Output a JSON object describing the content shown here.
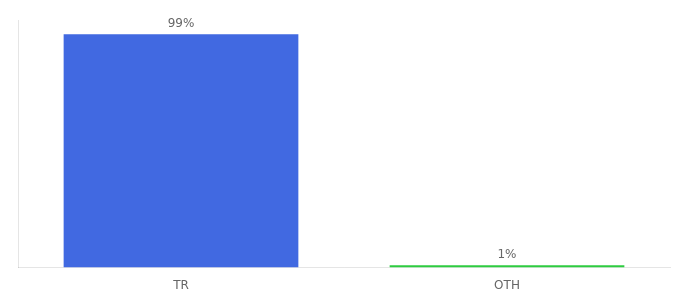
{
  "chart_data": {
    "type": "bar",
    "categories": [
      "TR",
      "OTH"
    ],
    "values": [
      99,
      1
    ],
    "data_labels": true,
    "value_labels": [
      "99%",
      "1%"
    ],
    "colors": [
      "#4169e1",
      "#2ecc40"
    ],
    "ylim": [
      0,
      105
    ],
    "grid": false,
    "tick_labels": "x"
  }
}
